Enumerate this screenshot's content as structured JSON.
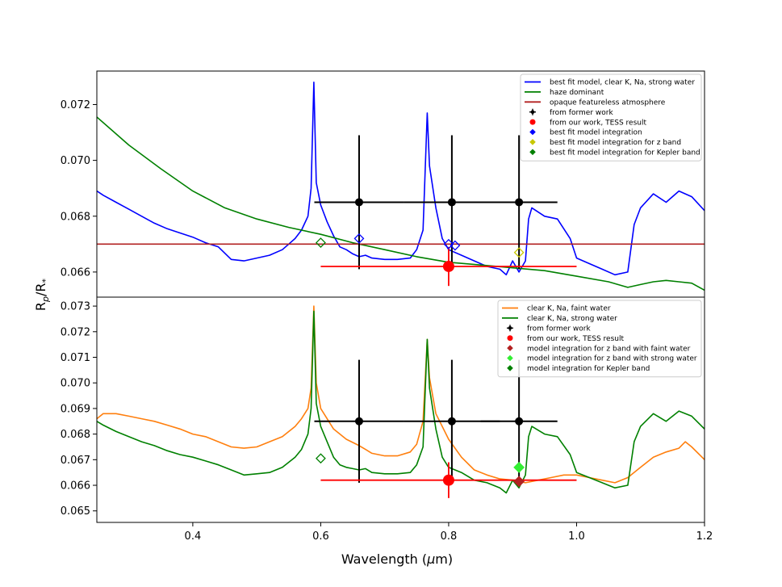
{
  "chart_data": [
    {
      "type": "line",
      "panel": "top",
      "xlim": [
        0.25,
        1.2
      ],
      "ylim": [
        0.0651,
        0.0732
      ],
      "yticks": [
        0.066,
        0.068,
        0.07,
        0.072
      ],
      "ytick_labels": [
        "0.066",
        "0.068",
        "0.070",
        "0.072"
      ],
      "legend_position": "top-right",
      "series": [
        {
          "name": "best fit model, clear K, Na, strong water",
          "color": "#0000ff",
          "x": [
            0.25,
            0.26,
            0.28,
            0.3,
            0.32,
            0.34,
            0.36,
            0.38,
            0.4,
            0.42,
            0.44,
            0.46,
            0.48,
            0.5,
            0.52,
            0.54,
            0.55,
            0.56,
            0.57,
            0.58,
            0.585,
            0.5893,
            0.593,
            0.6,
            0.61,
            0.62,
            0.63,
            0.64,
            0.65,
            0.66,
            0.67,
            0.68,
            0.7,
            0.72,
            0.74,
            0.75,
            0.76,
            0.7665,
            0.77,
            0.78,
            0.79,
            0.8,
            0.82,
            0.84,
            0.86,
            0.88,
            0.89,
            0.9,
            0.91,
            0.92,
            0.925,
            0.93,
            0.95,
            0.97,
            0.99,
            1.0,
            1.02,
            1.04,
            1.06,
            1.08,
            1.09,
            1.1,
            1.12,
            1.14,
            1.16,
            1.18,
            1.2
          ],
          "y": [
            0.0689,
            0.06875,
            0.0685,
            0.06825,
            0.068,
            0.06775,
            0.06755,
            0.0674,
            0.06725,
            0.06705,
            0.0669,
            0.06645,
            0.0664,
            0.0665,
            0.0666,
            0.0668,
            0.067,
            0.0672,
            0.0675,
            0.068,
            0.069,
            0.0728,
            0.0692,
            0.0684,
            0.0678,
            0.0673,
            0.0669,
            0.0668,
            0.06665,
            0.06655,
            0.0666,
            0.0665,
            0.06645,
            0.06645,
            0.0665,
            0.0668,
            0.0675,
            0.0717,
            0.0698,
            0.0683,
            0.0672,
            0.0668,
            0.0666,
            0.0664,
            0.0662,
            0.0661,
            0.0659,
            0.0664,
            0.066,
            0.0664,
            0.0679,
            0.0683,
            0.068,
            0.0679,
            0.0672,
            0.0665,
            0.0663,
            0.0661,
            0.0659,
            0.066,
            0.0677,
            0.0683,
            0.0688,
            0.0685,
            0.0689,
            0.0687,
            0.0682
          ]
        },
        {
          "name": "haze dominant",
          "color": "#008000",
          "x": [
            0.25,
            0.3,
            0.35,
            0.4,
            0.45,
            0.5,
            0.55,
            0.6,
            0.65,
            0.7,
            0.75,
            0.8,
            0.85,
            0.9,
            0.95,
            1.0,
            1.05,
            1.08,
            1.1,
            1.12,
            1.14,
            1.16,
            1.18,
            1.2
          ],
          "y": [
            0.07155,
            0.07055,
            0.0697,
            0.0689,
            0.0683,
            0.0679,
            0.0676,
            0.06735,
            0.06705,
            0.0668,
            0.06655,
            0.06635,
            0.06625,
            0.06615,
            0.06605,
            0.06585,
            0.06565,
            0.06545,
            0.06555,
            0.06565,
            0.0657,
            0.06565,
            0.0656,
            0.06535
          ]
        },
        {
          "name": "opaque featureless atmosphere",
          "color": "#b22222",
          "x": [
            0.25,
            1.2
          ],
          "y": [
            0.067,
            0.067
          ]
        }
      ],
      "points": [
        {
          "label": "from former work",
          "color": "#000000",
          "x": 0.66,
          "y": 0.0685,
          "xerr": 0.07,
          "yerr": 0.0024
        },
        {
          "label": "from former work",
          "color": "#000000",
          "x": 0.805,
          "y": 0.0685,
          "xerr": 0.075,
          "yerr": 0.0024
        },
        {
          "label": "from former work",
          "color": "#000000",
          "x": 0.91,
          "y": 0.0685,
          "xerr": 0.06,
          "yerr": 0.0024
        },
        {
          "label": "from our work, TESS result",
          "color": "#ff0000",
          "x": 0.8,
          "y": 0.0662,
          "xerr": 0.2,
          "yerr": 0.0007
        },
        {
          "label": "best fit model integration",
          "color": "#0000ff",
          "x": 0.66,
          "y": 0.0672
        },
        {
          "label": "best fit model integration",
          "color": "#0000ff",
          "x": 0.8,
          "y": 0.067
        },
        {
          "label": "best fit model integration",
          "color": "#0000ff",
          "x": 0.81,
          "y": 0.06695
        },
        {
          "label": "best fit model integration for z band",
          "color": "#c8c800",
          "x": 0.91,
          "y": 0.0667
        },
        {
          "label": "best fit model integration for Kepler band",
          "color": "#008000",
          "x": 0.6,
          "y": 0.06705
        }
      ],
      "legend": [
        {
          "label": "best fit model, clear K, Na, strong water",
          "color": "#0000ff",
          "kind": "line"
        },
        {
          "label": "haze dominant",
          "color": "#008000",
          "kind": "line"
        },
        {
          "label": "opaque featureless atmosphere",
          "color": "#b22222",
          "kind": "line"
        },
        {
          "label": "from former work",
          "color": "#000000",
          "kind": "errorbar"
        },
        {
          "label": "from our work, TESS result",
          "color": "#ff0000",
          "kind": "dot"
        },
        {
          "label": "best fit model integration",
          "color": "#0000ff",
          "kind": "diamond"
        },
        {
          "label": "best fit model integration for z band",
          "color": "#c8c800",
          "kind": "diamond"
        },
        {
          "label": "best fit model integration for Kepler band",
          "color": "#008000",
          "kind": "diamond"
        }
      ]
    },
    {
      "type": "line",
      "panel": "bottom",
      "xlim": [
        0.25,
        1.2
      ],
      "ylim": [
        0.06455,
        0.07335
      ],
      "yticks": [
        0.065,
        0.066,
        0.067,
        0.068,
        0.069,
        0.07,
        0.071,
        0.072,
        0.073
      ],
      "ytick_labels": [
        "0.065",
        "0.066",
        "0.067",
        "0.068",
        "0.069",
        "0.070",
        "0.071",
        "0.072",
        "0.073"
      ],
      "legend_position": "top-right",
      "series": [
        {
          "name": "clear K, Na, faint water",
          "color": "#ff7f0e",
          "x": [
            0.25,
            0.26,
            0.28,
            0.3,
            0.32,
            0.34,
            0.36,
            0.38,
            0.4,
            0.42,
            0.44,
            0.46,
            0.48,
            0.5,
            0.52,
            0.54,
            0.56,
            0.57,
            0.58,
            0.585,
            0.5893,
            0.593,
            0.6,
            0.62,
            0.64,
            0.66,
            0.67,
            0.68,
            0.7,
            0.72,
            0.74,
            0.75,
            0.76,
            0.7665,
            0.77,
            0.78,
            0.8,
            0.82,
            0.84,
            0.86,
            0.88,
            0.9,
            0.92,
            0.94,
            0.96,
            0.98,
            1.0,
            1.02,
            1.04,
            1.06,
            1.08,
            1.1,
            1.12,
            1.14,
            1.16,
            1.17,
            1.18,
            1.2
          ],
          "y": [
            0.0686,
            0.0688,
            0.0688,
            0.0687,
            0.0686,
            0.0685,
            0.06835,
            0.0682,
            0.068,
            0.0679,
            0.0677,
            0.0675,
            0.06745,
            0.0675,
            0.0677,
            0.0679,
            0.0683,
            0.0686,
            0.069,
            0.0698,
            0.073,
            0.07,
            0.069,
            0.0682,
            0.0678,
            0.06755,
            0.0674,
            0.06725,
            0.06715,
            0.06715,
            0.0673,
            0.0676,
            0.0685,
            0.0717,
            0.0702,
            0.0688,
            0.0678,
            0.0671,
            0.0666,
            0.0664,
            0.06625,
            0.0662,
            0.0661,
            0.0662,
            0.0663,
            0.0664,
            0.0664,
            0.0663,
            0.0662,
            0.0661,
            0.0663,
            0.0667,
            0.0671,
            0.0673,
            0.06745,
            0.0677,
            0.0675,
            0.067
          ]
        },
        {
          "name": "clear K, Na, strong water",
          "color": "#008000",
          "x": [
            0.25,
            0.26,
            0.28,
            0.3,
            0.32,
            0.34,
            0.36,
            0.38,
            0.4,
            0.42,
            0.44,
            0.46,
            0.48,
            0.5,
            0.52,
            0.54,
            0.55,
            0.56,
            0.57,
            0.58,
            0.585,
            0.5893,
            0.593,
            0.6,
            0.61,
            0.62,
            0.63,
            0.64,
            0.65,
            0.66,
            0.67,
            0.68,
            0.7,
            0.72,
            0.74,
            0.75,
            0.76,
            0.7665,
            0.77,
            0.78,
            0.79,
            0.8,
            0.82,
            0.84,
            0.86,
            0.88,
            0.89,
            0.9,
            0.91,
            0.92,
            0.925,
            0.93,
            0.95,
            0.97,
            0.99,
            1.0,
            1.02,
            1.04,
            1.06,
            1.08,
            1.09,
            1.1,
            1.12,
            1.14,
            1.16,
            1.18,
            1.2
          ],
          "y": [
            0.0685,
            0.06835,
            0.0681,
            0.0679,
            0.0677,
            0.06755,
            0.06735,
            0.0672,
            0.0671,
            0.06695,
            0.0668,
            0.0666,
            0.0664,
            0.06645,
            0.0665,
            0.0667,
            0.0669,
            0.0671,
            0.0674,
            0.068,
            0.069,
            0.0728,
            0.0692,
            0.0683,
            0.0677,
            0.0671,
            0.0668,
            0.0667,
            0.06665,
            0.0666,
            0.06665,
            0.0665,
            0.06645,
            0.06645,
            0.0665,
            0.0668,
            0.0675,
            0.0717,
            0.0698,
            0.0682,
            0.0671,
            0.0667,
            0.0665,
            0.0662,
            0.0661,
            0.0659,
            0.0657,
            0.0662,
            0.0659,
            0.0664,
            0.0679,
            0.0683,
            0.068,
            0.0679,
            0.0672,
            0.0665,
            0.0663,
            0.0661,
            0.0659,
            0.066,
            0.0677,
            0.0683,
            0.0688,
            0.0685,
            0.0689,
            0.0687,
            0.0682
          ]
        }
      ],
      "points": [
        {
          "label": "from former work",
          "color": "#000000",
          "x": 0.66,
          "y": 0.0685,
          "xerr": 0.07,
          "yerr": 0.0024
        },
        {
          "label": "from former work",
          "color": "#000000",
          "x": 0.805,
          "y": 0.0685,
          "xerr": 0.075,
          "yerr": 0.0024
        },
        {
          "label": "from former work",
          "color": "#000000",
          "x": 0.91,
          "y": 0.0685,
          "xerr": 0.06,
          "yerr": 0.0024
        },
        {
          "label": "from our work, TESS result",
          "color": "#ff0000",
          "x": 0.8,
          "y": 0.0662,
          "xerr": 0.2,
          "yerr": 0.0007
        },
        {
          "label": "model integration for z band with faint water",
          "color": "#b22222",
          "x": 0.91,
          "y": 0.06615
        },
        {
          "label": "model integration for z band with strong water",
          "color": "#33ee33",
          "x": 0.91,
          "y": 0.0667
        },
        {
          "label": "model integration for Kepler band",
          "color": "#008000",
          "x": 0.6,
          "y": 0.06705
        }
      ],
      "legend": [
        {
          "label": "clear K, Na, faint water",
          "color": "#ff7f0e",
          "kind": "line"
        },
        {
          "label": "clear K, Na, strong water",
          "color": "#008000",
          "kind": "line"
        },
        {
          "label": "from former work",
          "color": "#000000",
          "kind": "errorbar"
        },
        {
          "label": "from our work, TESS result",
          "color": "#ff0000",
          "kind": "dot"
        },
        {
          "label": "model integration for z band with faint water",
          "color": "#b22222",
          "kind": "diamond"
        },
        {
          "label": "model integration for z band with strong water",
          "color": "#33ee33",
          "kind": "diamond"
        },
        {
          "label": "model integration for Kepler band",
          "color": "#008000",
          "kind": "diamond"
        }
      ]
    }
  ],
  "shared": {
    "xticks": [
      0.4,
      0.6,
      0.8,
      1.0,
      1.2
    ],
    "xtick_labels": [
      "0.4",
      "0.6",
      "0.8",
      "1.0",
      "1.2"
    ],
    "xlabel_text": "Wavelength (",
    "xlabel_mu": "μ",
    "xlabel_unit": "m)",
    "ylabel_main": "R",
    "ylabel_sub1": "p",
    "ylabel_slash": "/R",
    "ylabel_sub2": "*"
  }
}
